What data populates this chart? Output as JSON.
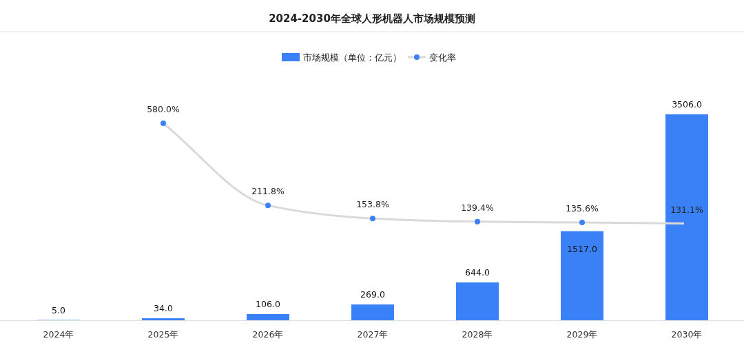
{
  "chart_data": {
    "type": "bar",
    "title": "2024-2030年全球人形机器人市场规模预测",
    "categories": [
      "2024年",
      "2025年",
      "2026年",
      "2027年",
      "2028年",
      "2029年",
      "2030年"
    ],
    "series": [
      {
        "name": "市场规模（单位：亿元）",
        "color": "#3a80f6",
        "values": [
          5.0,
          34.0,
          106.0,
          269.0,
          644.0,
          1517.0,
          3506.0
        ],
        "value_labels": [
          "5.0",
          "34.0",
          "106.0",
          "269.0",
          "644.0",
          "1517.0",
          "3506.0"
        ]
      },
      {
        "name": "变化率",
        "type": "line",
        "axis": "y2",
        "color": "#3a80f6",
        "marker": "circle",
        "values": [
          null,
          580.0,
          211.8,
          153.8,
          139.4,
          135.6,
          131.1
        ],
        "value_labels": [
          null,
          "580.0%",
          "211.8%",
          "153.8%",
          "139.4%",
          "135.6%",
          "131.1%"
        ]
      }
    ],
    "legend": "top"
  }
}
